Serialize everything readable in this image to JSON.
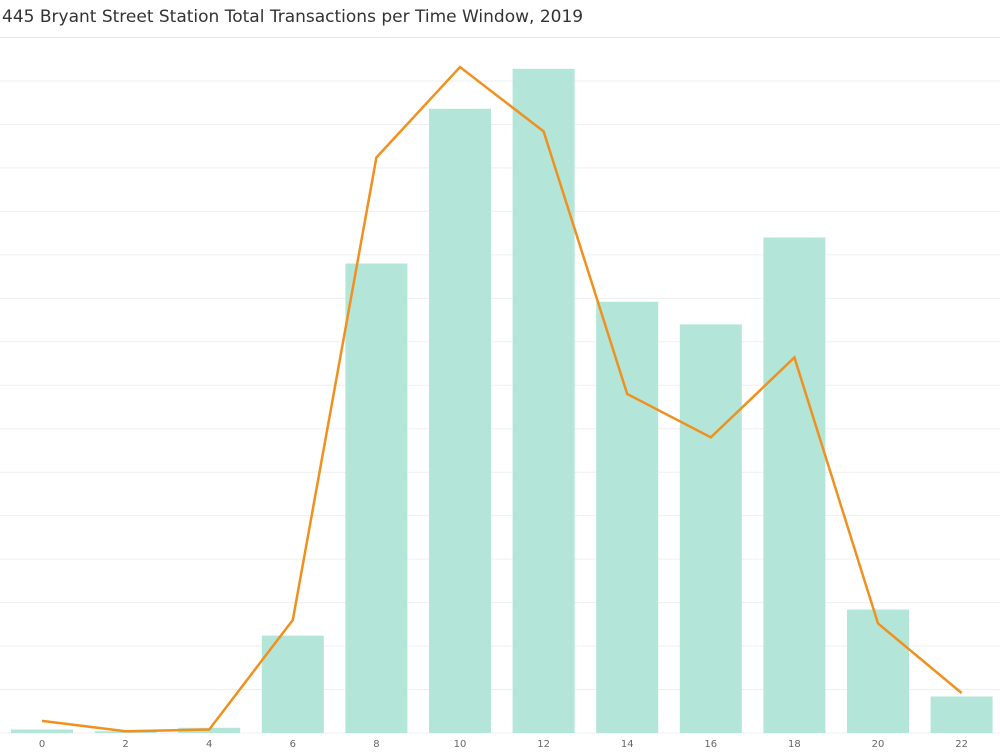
{
  "chart_data": {
    "type": "bar",
    "title": "445 Bryant Street Station Total Transactions per Time Window, 2019",
    "xlabel": "",
    "ylabel": "",
    "categories": [
      "0",
      "2",
      "4",
      "6",
      "8",
      "10",
      "12",
      "14",
      "16",
      "18",
      "20",
      "22"
    ],
    "series": [
      {
        "type": "bar",
        "color": "#b3e6d8",
        "values": [
          0.4,
          0.2,
          0.6,
          11.2,
          54.0,
          71.8,
          76.4,
          49.6,
          47.0,
          57.0,
          14.2,
          4.2
        ]
      },
      {
        "type": "line",
        "color": "#f0901e",
        "values": [
          1.4,
          0.2,
          0.4,
          13.0,
          66.2,
          76.6,
          69.2,
          39.0,
          34.0,
          43.2,
          12.6,
          4.6
        ]
      }
    ],
    "ylim": [
      0,
      80
    ],
    "grid": true,
    "legend": "none"
  }
}
